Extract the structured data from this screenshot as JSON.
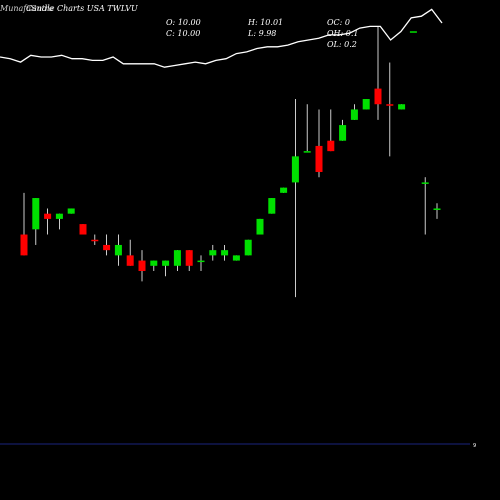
{
  "header": {
    "title_a": "MunafaSutra",
    "title_b": "Candle Charts USA TWLVU"
  },
  "ohlc": {
    "o_label": "O:",
    "o_value": "10.00",
    "c_label": "C:",
    "c_value": "10.00",
    "h_label": "H:",
    "h_value": "10.01",
    "l_label": "L:",
    "l_value": "9.98",
    "oc_label": "OC:",
    "oc_value": "0",
    "oh_label": "OH:",
    "oh_value": "0.1",
    "ol_label": "OL:",
    "ol_value": "0.2"
  },
  "axis": {
    "right_tick": "9"
  },
  "colors": {
    "up": "#00e000",
    "down": "#ff0000",
    "line": "#ffffff",
    "axis": "#1a237e",
    "background": "#000000"
  },
  "chart_data": {
    "type": "candlestick",
    "title": "Candle Charts USA TWLVU",
    "price_range": [
      9.55,
      10.4
    ],
    "line_range": [
      0,
      100
    ],
    "candles": [
      {
        "open": 9.95,
        "high": 10.03,
        "low": 9.91,
        "close": 9.91,
        "dir": "down"
      },
      {
        "open": 9.96,
        "high": 10.02,
        "low": 9.93,
        "close": 10.02,
        "dir": "up"
      },
      {
        "open": 9.99,
        "high": 10.0,
        "low": 9.95,
        "close": 9.98,
        "dir": "down"
      },
      {
        "open": 9.98,
        "high": 9.99,
        "low": 9.96,
        "close": 9.99,
        "dir": "up"
      },
      {
        "open": 9.99,
        "high": 10.0,
        "low": 9.99,
        "close": 10.0,
        "dir": "up"
      },
      {
        "open": 9.97,
        "high": 9.97,
        "low": 9.95,
        "close": 9.95,
        "dir": "down"
      },
      {
        "open": 9.94,
        "high": 9.95,
        "low": 9.93,
        "close": 9.94,
        "dir": "down"
      },
      {
        "open": 9.93,
        "high": 9.95,
        "low": 9.91,
        "close": 9.92,
        "dir": "down"
      },
      {
        "open": 9.91,
        "high": 9.95,
        "low": 9.89,
        "close": 9.93,
        "dir": "up"
      },
      {
        "open": 9.91,
        "high": 9.94,
        "low": 9.89,
        "close": 9.89,
        "dir": "down"
      },
      {
        "open": 9.9,
        "high": 9.92,
        "low": 9.86,
        "close": 9.88,
        "dir": "down"
      },
      {
        "open": 9.89,
        "high": 9.9,
        "low": 9.88,
        "close": 9.9,
        "dir": "up"
      },
      {
        "open": 9.89,
        "high": 9.9,
        "low": 9.87,
        "close": 9.9,
        "dir": "up"
      },
      {
        "open": 9.89,
        "high": 9.92,
        "low": 9.88,
        "close": 9.92,
        "dir": "up"
      },
      {
        "open": 9.92,
        "high": 9.92,
        "low": 9.88,
        "close": 9.89,
        "dir": "down"
      },
      {
        "open": 9.9,
        "high": 9.91,
        "low": 9.88,
        "close": 9.9,
        "dir": "up"
      },
      {
        "open": 9.91,
        "high": 9.93,
        "low": 9.9,
        "close": 9.92,
        "dir": "up"
      },
      {
        "open": 9.91,
        "high": 9.93,
        "low": 9.9,
        "close": 9.92,
        "dir": "up"
      },
      {
        "open": 9.9,
        "high": 9.91,
        "low": 9.9,
        "close": 9.91,
        "dir": "up"
      },
      {
        "open": 9.91,
        "high": 9.94,
        "low": 9.91,
        "close": 9.94,
        "dir": "up"
      },
      {
        "open": 9.95,
        "high": 9.98,
        "low": 9.95,
        "close": 9.98,
        "dir": "up"
      },
      {
        "open": 9.99,
        "high": 10.02,
        "low": 9.99,
        "close": 10.02,
        "dir": "up"
      },
      {
        "open": 10.03,
        "high": 10.04,
        "low": 10.03,
        "close": 10.04,
        "dir": "up"
      },
      {
        "open": 10.05,
        "high": 10.21,
        "low": 9.83,
        "close": 10.1,
        "dir": "up"
      },
      {
        "open": 10.11,
        "high": 10.2,
        "low": 10.11,
        "close": 10.11,
        "dir": "up"
      },
      {
        "open": 10.12,
        "high": 10.19,
        "low": 10.06,
        "close": 10.07,
        "dir": "down"
      },
      {
        "open": 10.11,
        "high": 10.19,
        "low": 10.11,
        "close": 10.13,
        "dir": "down"
      },
      {
        "open": 10.13,
        "high": 10.17,
        "low": 10.13,
        "close": 10.16,
        "dir": "up"
      },
      {
        "open": 10.17,
        "high": 10.2,
        "low": 10.17,
        "close": 10.19,
        "dir": "up"
      },
      {
        "open": 10.21,
        "high": 10.21,
        "low": 10.19,
        "close": 10.19,
        "dir": "up"
      },
      {
        "open": 10.23,
        "high": 10.35,
        "low": 10.17,
        "close": 10.2,
        "dir": "down"
      },
      {
        "open": 10.2,
        "high": 10.28,
        "low": 10.1,
        "close": 10.2,
        "dir": "down"
      },
      {
        "open": 10.2,
        "high": 10.2,
        "low": 10.19,
        "close": 10.19,
        "dir": "up"
      },
      {
        "open": 10.34,
        "high": 10.34,
        "low": 10.34,
        "close": 10.34,
        "dir": "up"
      },
      {
        "open": 10.05,
        "high": 10.06,
        "low": 9.95,
        "close": 10.05,
        "dir": "up"
      },
      {
        "open": 10.0,
        "high": 10.01,
        "low": 9.98,
        "close": 10.0,
        "dir": "up"
      }
    ],
    "line": [
      90,
      89,
      87,
      91,
      90,
      90,
      91,
      89,
      89,
      88,
      88,
      90,
      86,
      86,
      86,
      86,
      84,
      85,
      86,
      87,
      86,
      88,
      89,
      92,
      93,
      95,
      96,
      96,
      97,
      99,
      100,
      101,
      103,
      103,
      104,
      107,
      108,
      108,
      100,
      105,
      113,
      114,
      118,
      110
    ]
  }
}
